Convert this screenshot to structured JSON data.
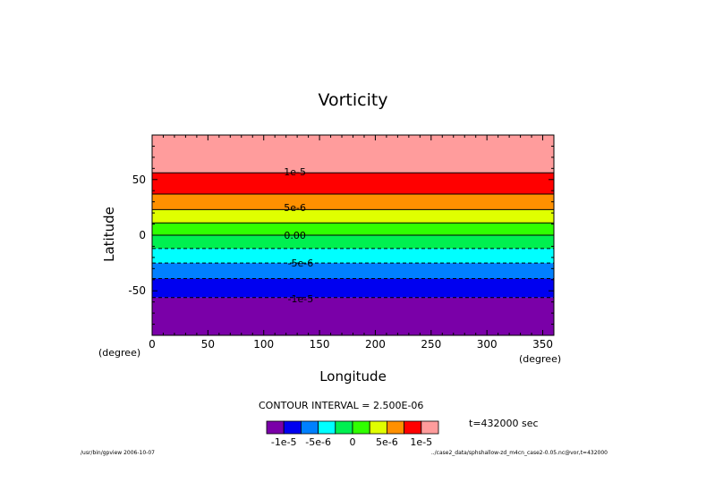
{
  "chart_data": {
    "type": "heatmap",
    "title": "Vorticity",
    "xlabel": "Longitude",
    "ylabel": "Latitude",
    "x_unit": "(degree)",
    "y_unit": "(degree)",
    "xlim": [
      0,
      360
    ],
    "ylim": [
      -90,
      90
    ],
    "x_ticks": [
      0,
      50,
      100,
      150,
      200,
      250,
      300,
      350
    ],
    "y_ticks": [
      -50,
      0,
      50
    ],
    "contour_interval_text": "CONTOUR INTERVAL = 2.500E-06",
    "time_text": "t=432000 sec",
    "bands": [
      {
        "lat_from": -90,
        "lat_to": -56,
        "color": "#7a00a8"
      },
      {
        "lat_from": -56,
        "lat_to": -39,
        "color": "#0000f0"
      },
      {
        "lat_from": -39,
        "lat_to": -25,
        "color": "#0080ff"
      },
      {
        "lat_from": -25,
        "lat_to": -12,
        "color": "#00ffff"
      },
      {
        "lat_from": -12,
        "lat_to": 0,
        "color": "#00f050"
      },
      {
        "lat_from": 0,
        "lat_to": 11,
        "color": "#30ff00"
      },
      {
        "lat_from": 11,
        "lat_to": 23,
        "color": "#e0ff00"
      },
      {
        "lat_from": 23,
        "lat_to": 37,
        "color": "#ff9000"
      },
      {
        "lat_from": 37,
        "lat_to": 56,
        "color": "#ff0000"
      },
      {
        "lat_from": 56,
        "lat_to": 90,
        "color": "#ff9c9c"
      }
    ],
    "contours": [
      {
        "lat": -56,
        "dashed": true
      },
      {
        "lat": -39,
        "dashed": true
      },
      {
        "lat": -25,
        "dashed": true
      },
      {
        "lat": -12,
        "dashed": true
      },
      {
        "lat": 0,
        "dashed": false
      },
      {
        "lat": 11,
        "dashed": false
      },
      {
        "lat": 23,
        "dashed": false
      },
      {
        "lat": 37,
        "dashed": false
      },
      {
        "lat": 56,
        "dashed": false
      }
    ],
    "contour_labels": [
      {
        "text": "1e-5",
        "lat": 57,
        "lon": 128
      },
      {
        "text": "5e-6",
        "lat": 25,
        "lon": 128
      },
      {
        "text": "0.00",
        "lat": 0,
        "lon": 128
      },
      {
        "text": "-5e-6",
        "lat": -25,
        "lon": 133
      },
      {
        "text": "-1e-5",
        "lat": -57,
        "lon": 133
      }
    ],
    "colorbar": {
      "colors": [
        "#7a00a8",
        "#0000f0",
        "#0080ff",
        "#00ffff",
        "#00f050",
        "#30ff00",
        "#e0ff00",
        "#ff9000",
        "#ff0000",
        "#ff9c9c"
      ],
      "labels": [
        "-1e-5",
        "-5e-6",
        "0",
        "5e-6",
        "1e-5"
      ]
    }
  },
  "footer": {
    "left": "/usr/bin/gpview  2006-10-07",
    "right": "../case2_data/sphshallow-zd_m4cn_case2-0.05.nc@vor,t=432000"
  }
}
